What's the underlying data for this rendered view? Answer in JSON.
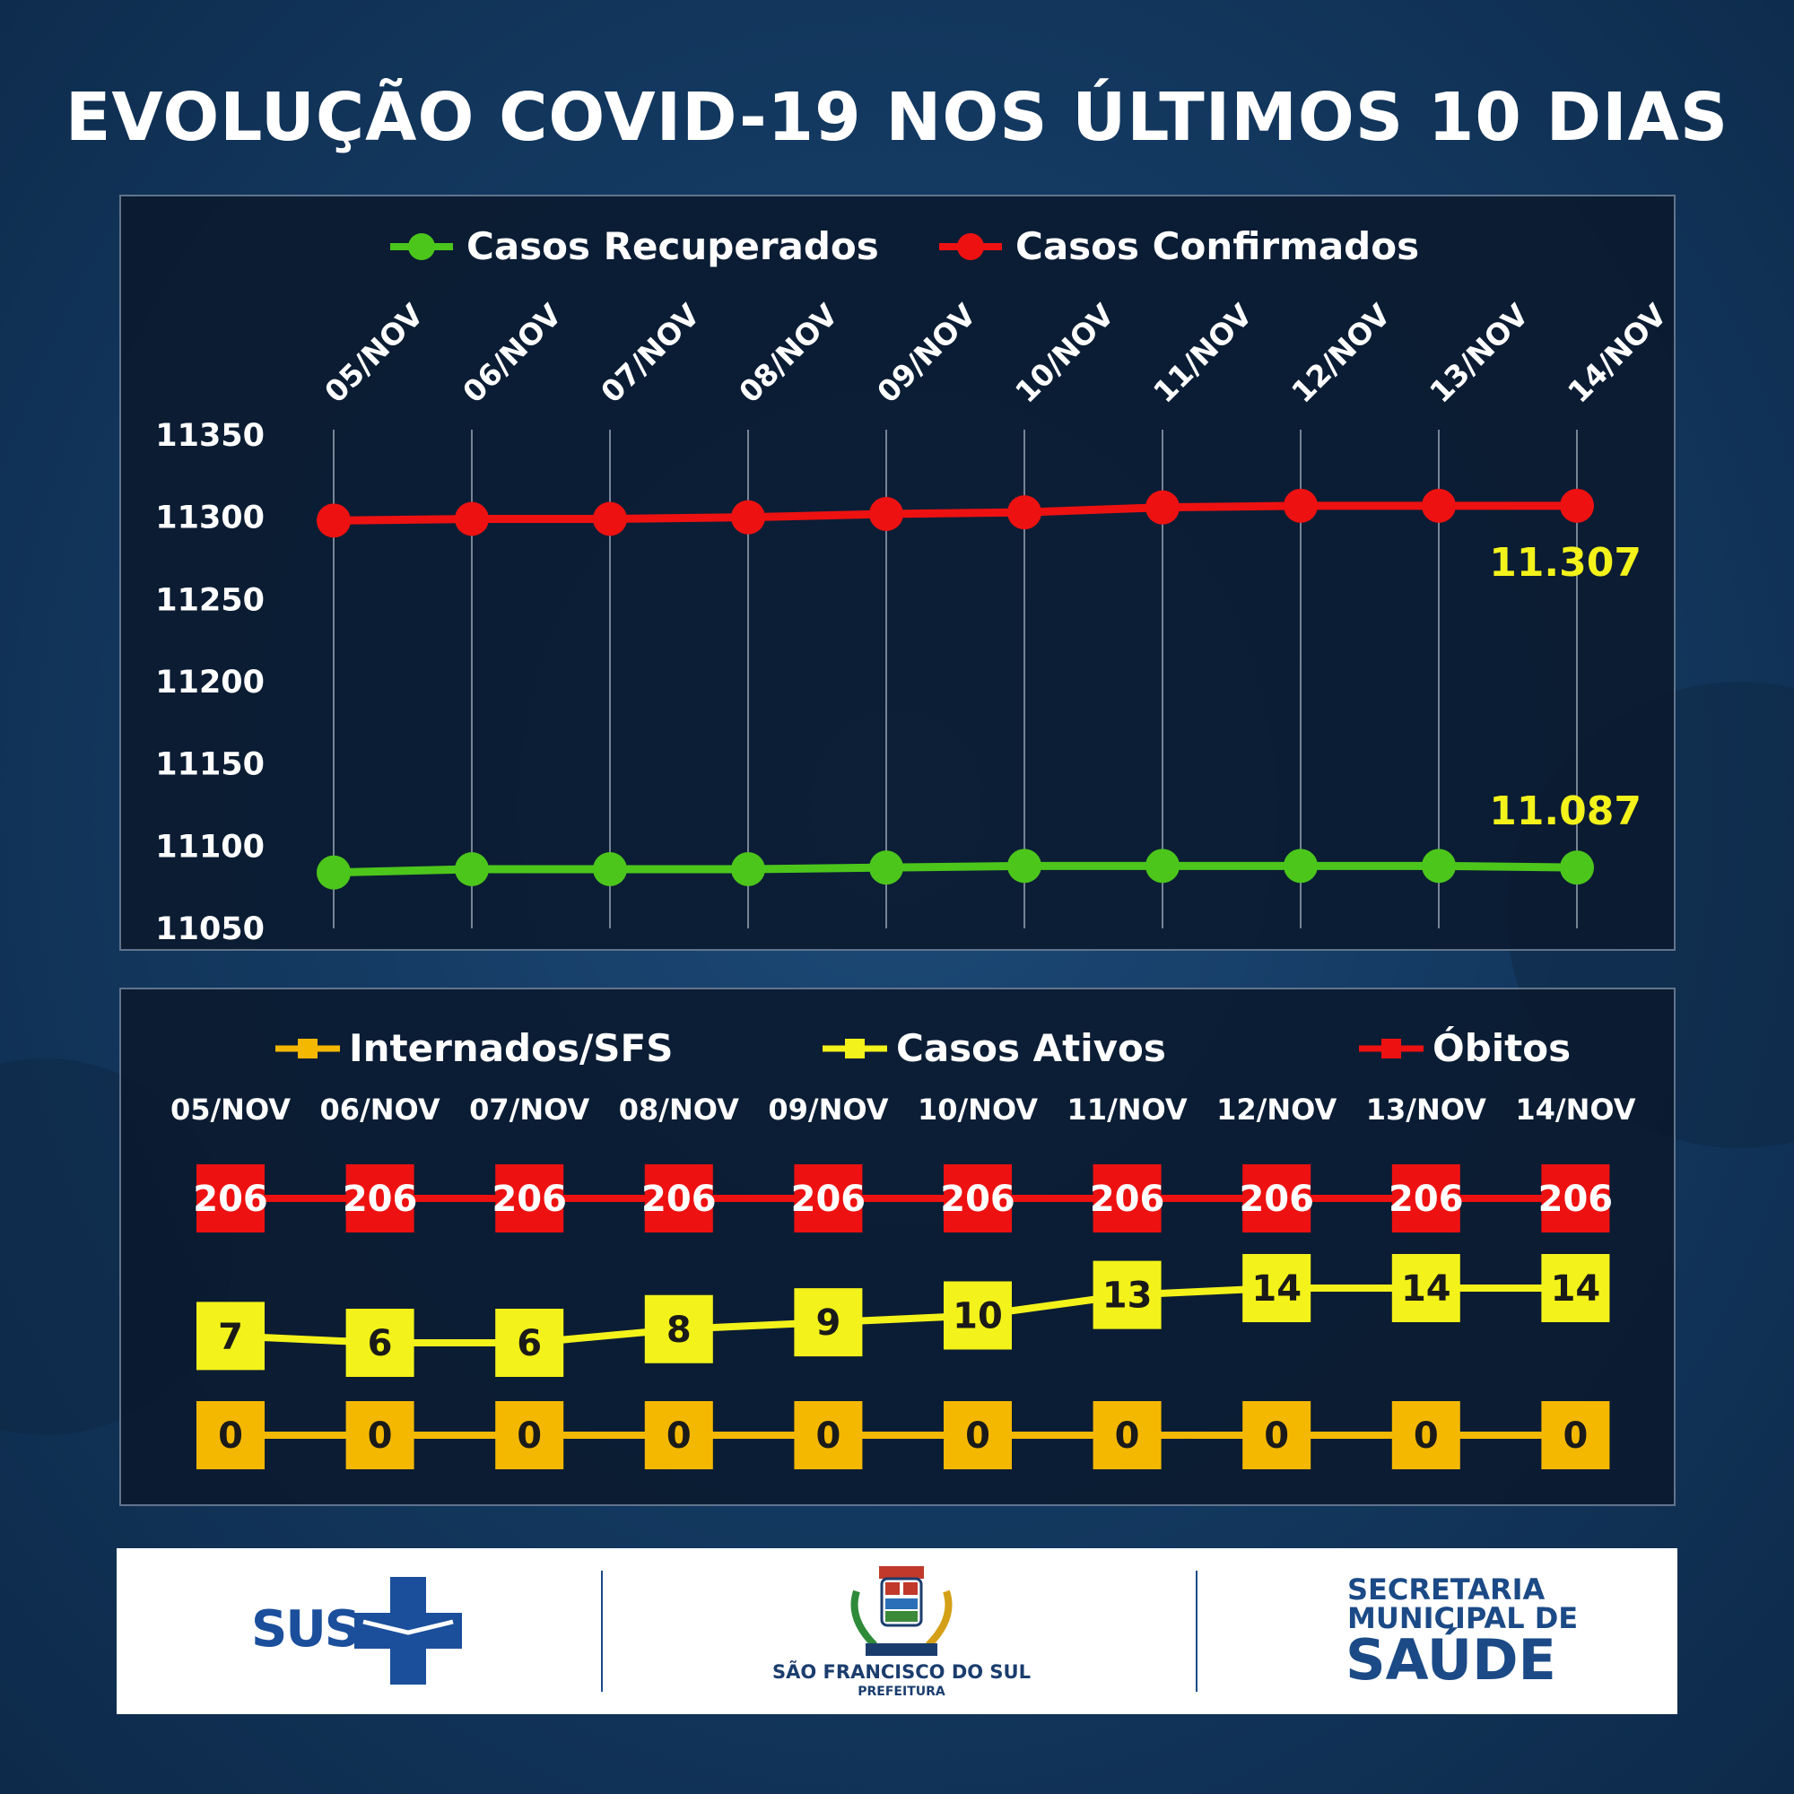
{
  "title": "EVOLUÇÃO COVID-19 NOS ÚLTIMOS 10 DIAS",
  "colors": {
    "recovered": "#4cc61b",
    "confirmed": "#ee1111",
    "internados": "#f5b800",
    "ativos": "#f3f21a",
    "obitos": "#ee1111",
    "highlight_label": "#f3f21a"
  },
  "chart_data": [
    {
      "type": "line",
      "categories": [
        "05/NOV",
        "06/NOV",
        "07/NOV",
        "08/NOV",
        "09/NOV",
        "10/NOV",
        "11/NOV",
        "12/NOV",
        "13/NOV",
        "14/NOV"
      ],
      "series": [
        {
          "name": "Casos Recuperados",
          "values": [
            11084,
            11086,
            11086,
            11086,
            11087,
            11088,
            11088,
            11088,
            11088,
            11087
          ]
        },
        {
          "name": "Casos Confirmados",
          "values": [
            11298,
            11299,
            11299,
            11300,
            11302,
            11303,
            11306,
            11307,
            11307,
            11307
          ]
        }
      ],
      "yticks": [
        "11350",
        "11300",
        "11250",
        "11200",
        "11150",
        "11100",
        "11050"
      ],
      "ylim": [
        11050,
        11350
      ],
      "annotations": {
        "confirmed_last": "11.307",
        "recovered_last": "11.087"
      },
      "legend": "top",
      "grid": "vertical"
    },
    {
      "type": "line",
      "categories": [
        "05/NOV",
        "06/NOV",
        "07/NOV",
        "08/NOV",
        "09/NOV",
        "10/NOV",
        "11/NOV",
        "12/NOV",
        "13/NOV",
        "14/NOV"
      ],
      "series": [
        {
          "name": "Internados/SFS",
          "values": [
            0,
            0,
            0,
            0,
            0,
            0,
            0,
            0,
            0,
            0
          ]
        },
        {
          "name": "Casos Ativos",
          "values": [
            7,
            6,
            6,
            8,
            9,
            10,
            13,
            14,
            14,
            14
          ]
        },
        {
          "name": "Óbitos",
          "values": [
            206,
            206,
            206,
            206,
            206,
            206,
            206,
            206,
            206,
            206
          ]
        }
      ],
      "legend": "top"
    }
  ],
  "footer": {
    "sus": "SUS",
    "city": "SÃO FRANCISCO DO SUL",
    "prefeitura": "PREFEITURA",
    "secretaria_line1": "SECRETARIA",
    "secretaria_line2": "MUNICIPAL DE",
    "secretaria_line3": "SAÚDE"
  }
}
